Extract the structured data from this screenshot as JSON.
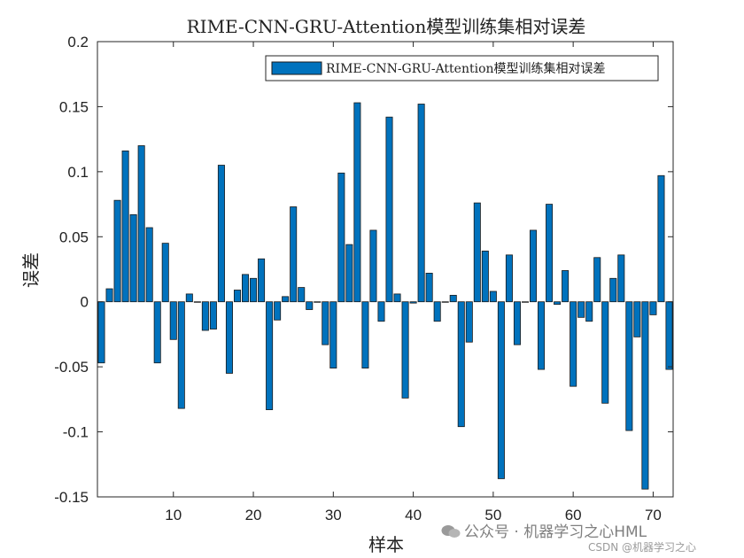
{
  "chart_data": {
    "type": "bar",
    "title": "RIME-CNN-GRU-Attention模型训练集相对误差",
    "xlabel": "样本",
    "ylabel": "误差",
    "xlim": [
      0.5,
      72.5
    ],
    "ylim": [
      -0.15,
      0.2
    ],
    "xticks": [
      10,
      20,
      30,
      40,
      50,
      60,
      70
    ],
    "yticks": [
      0.2,
      0.15,
      0.1,
      0.05,
      0,
      -0.05,
      -0.1,
      -0.15
    ],
    "ytick_labels": [
      "0.2",
      "0.15",
      "0.1",
      "0.05",
      "0",
      "-0.05",
      "-0.1",
      "-0.15"
    ],
    "legend": "RIME-CNN-GRU-Attention模型训练集相对误差",
    "legend_position": "top-right",
    "bar_color": "#0072BD",
    "x": [
      1,
      2,
      3,
      4,
      5,
      6,
      7,
      8,
      9,
      10,
      11,
      12,
      13,
      14,
      15,
      16,
      17,
      18,
      19,
      20,
      21,
      22,
      23,
      24,
      25,
      26,
      27,
      28,
      29,
      30,
      31,
      32,
      33,
      34,
      35,
      36,
      37,
      38,
      39,
      40,
      41,
      42,
      43,
      44,
      45,
      46,
      47,
      48,
      49,
      50,
      51,
      52,
      53,
      54,
      55,
      56,
      57,
      58,
      59,
      60,
      61,
      62,
      63,
      64,
      65,
      66,
      67,
      68,
      69,
      70,
      71,
      72
    ],
    "values": [
      -0.047,
      0.01,
      0.078,
      0.116,
      0.067,
      0.12,
      0.057,
      -0.047,
      0.045,
      -0.029,
      -0.082,
      0.006,
      0.0,
      -0.022,
      -0.021,
      0.105,
      -0.055,
      0.009,
      0.021,
      0.018,
      0.033,
      -0.083,
      -0.014,
      0.004,
      0.073,
      0.011,
      -0.006,
      0.0,
      -0.033,
      -0.051,
      0.099,
      0.044,
      0.153,
      -0.051,
      0.055,
      -0.015,
      0.142,
      0.006,
      -0.074,
      -0.001,
      0.152,
      0.022,
      -0.015,
      0.0,
      0.005,
      -0.096,
      -0.031,
      0.076,
      0.039,
      0.008,
      -0.136,
      0.036,
      -0.033,
      0.0,
      0.055,
      -0.052,
      0.075,
      -0.002,
      0.024,
      -0.065,
      -0.012,
      -0.015,
      0.034,
      -0.078,
      0.018,
      0.036,
      -0.099,
      -0.027,
      -0.144,
      -0.01,
      0.097,
      -0.052
    ]
  },
  "watermark": {
    "line1": "公众号 · 机器学习之心HML",
    "line2": "CSDN @机器学习之心"
  }
}
